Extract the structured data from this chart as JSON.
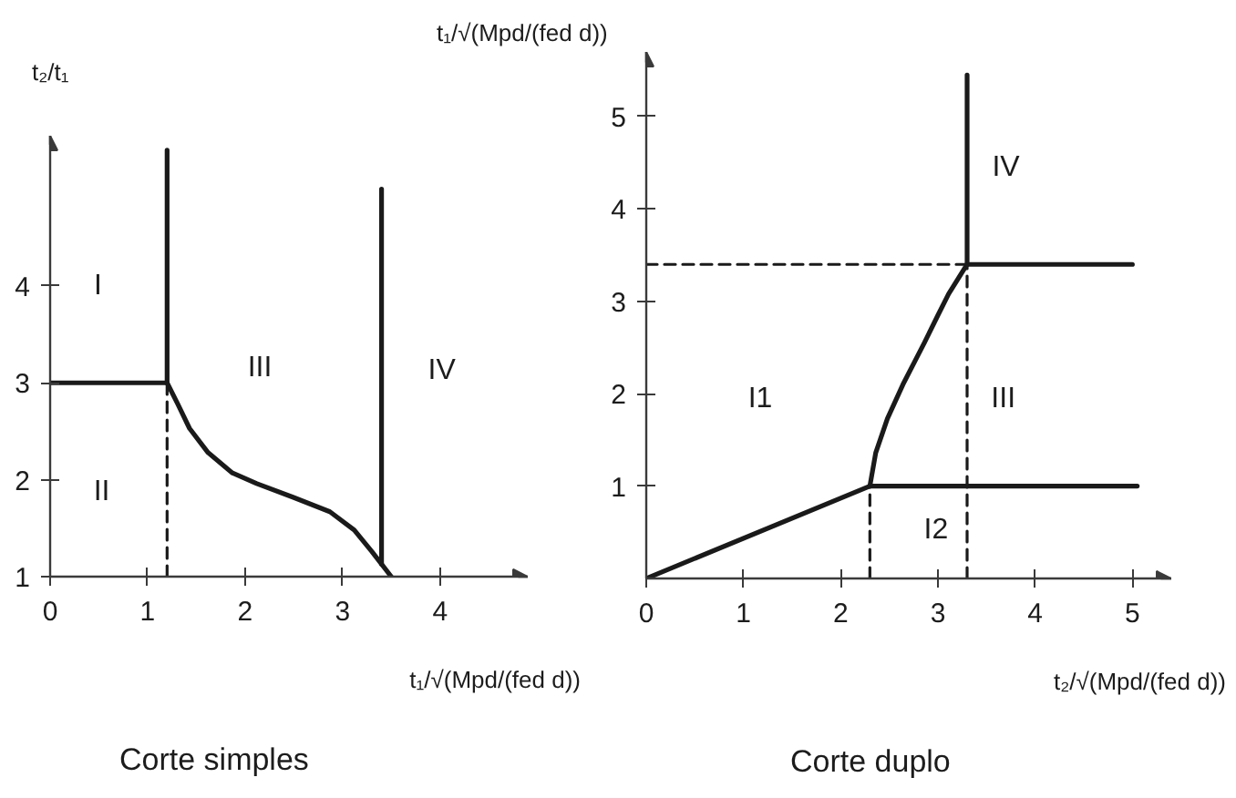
{
  "chart_data": [
    {
      "type": "line",
      "title": "Corte simples",
      "xlabel": "t₁/√(Mpd/(fed d))",
      "ylabel": "t₂/t₁",
      "xlim": [
        0,
        4.9
      ],
      "ylim": [
        1,
        5.55
      ],
      "xticks": [
        0,
        1,
        2,
        3,
        4
      ],
      "yticks": [
        1,
        2,
        3,
        4
      ],
      "series": [
        {
          "color": "#1a1a1a",
          "x": [
            0,
            1.2,
            1.2
          ],
          "values": [
            3,
            3,
            5.4
          ]
        },
        {
          "color": "#1a1a1a",
          "x": [
            1.2,
            1.2
          ],
          "values": [
            1,
            3
          ],
          "line_style": "dashed"
        },
        {
          "color": "#1a1a1a",
          "x": [
            1.2,
            1.31,
            1.43,
            1.62,
            1.87,
            2.12,
            2.49,
            2.87,
            3.12,
            3.3,
            3.5
          ],
          "values": [
            3,
            2.78,
            2.53,
            2.28,
            2.07,
            1.96,
            1.82,
            1.67,
            1.48,
            1.26,
            1.0
          ]
        },
        {
          "color": "#1a1a1a",
          "x": [
            3.4,
            3.4
          ],
          "values": [
            1.13,
            5.0
          ]
        }
      ],
      "annotations": [
        "I",
        "II",
        "III",
        "IV"
      ]
    },
    {
      "type": "line",
      "title": "Corte duplo",
      "xlabel": "t₂/√(Mpd/(fed d))",
      "ylabel": "t₁/√(Mpd/(fed d))",
      "xlim": [
        0,
        5.4
      ],
      "ylim": [
        0,
        5.7
      ],
      "xticks": [
        0,
        1,
        2,
        3,
        4,
        5
      ],
      "yticks": [
        1,
        2,
        3,
        4,
        5
      ],
      "series": [
        {
          "color": "#1a1a1a",
          "x": [
            0,
            2.3,
            5.05
          ],
          "values": [
            0,
            1,
            1
          ]
        },
        {
          "color": "#1a1a1a",
          "x": [
            2.3,
            2.3
          ],
          "values": [
            0,
            1
          ],
          "line_style": "dashed"
        },
        {
          "color": "#1a1a1a",
          "x": [
            2.3,
            2.36,
            2.48,
            2.64,
            2.86,
            3.0,
            3.11,
            3.3
          ],
          "values": [
            1,
            1.36,
            1.73,
            2.1,
            2.55,
            2.85,
            3.08,
            3.4
          ]
        },
        {
          "color": "#1a1a1a",
          "x": [
            3.3,
            3.3,
            5.0
          ],
          "values": [
            5.45,
            3.4,
            3.4
          ]
        },
        {
          "color": "#1a1a1a",
          "x": [
            0,
            3.3
          ],
          "values": [
            3.4,
            3.4
          ],
          "line_style": "dashed"
        },
        {
          "color": "#1a1a1a",
          "x": [
            3.3,
            3.3
          ],
          "values": [
            0,
            3.4
          ],
          "line_style": "dashed"
        }
      ],
      "annotations": [
        "IV",
        "I1",
        "III",
        "I2"
      ]
    }
  ]
}
